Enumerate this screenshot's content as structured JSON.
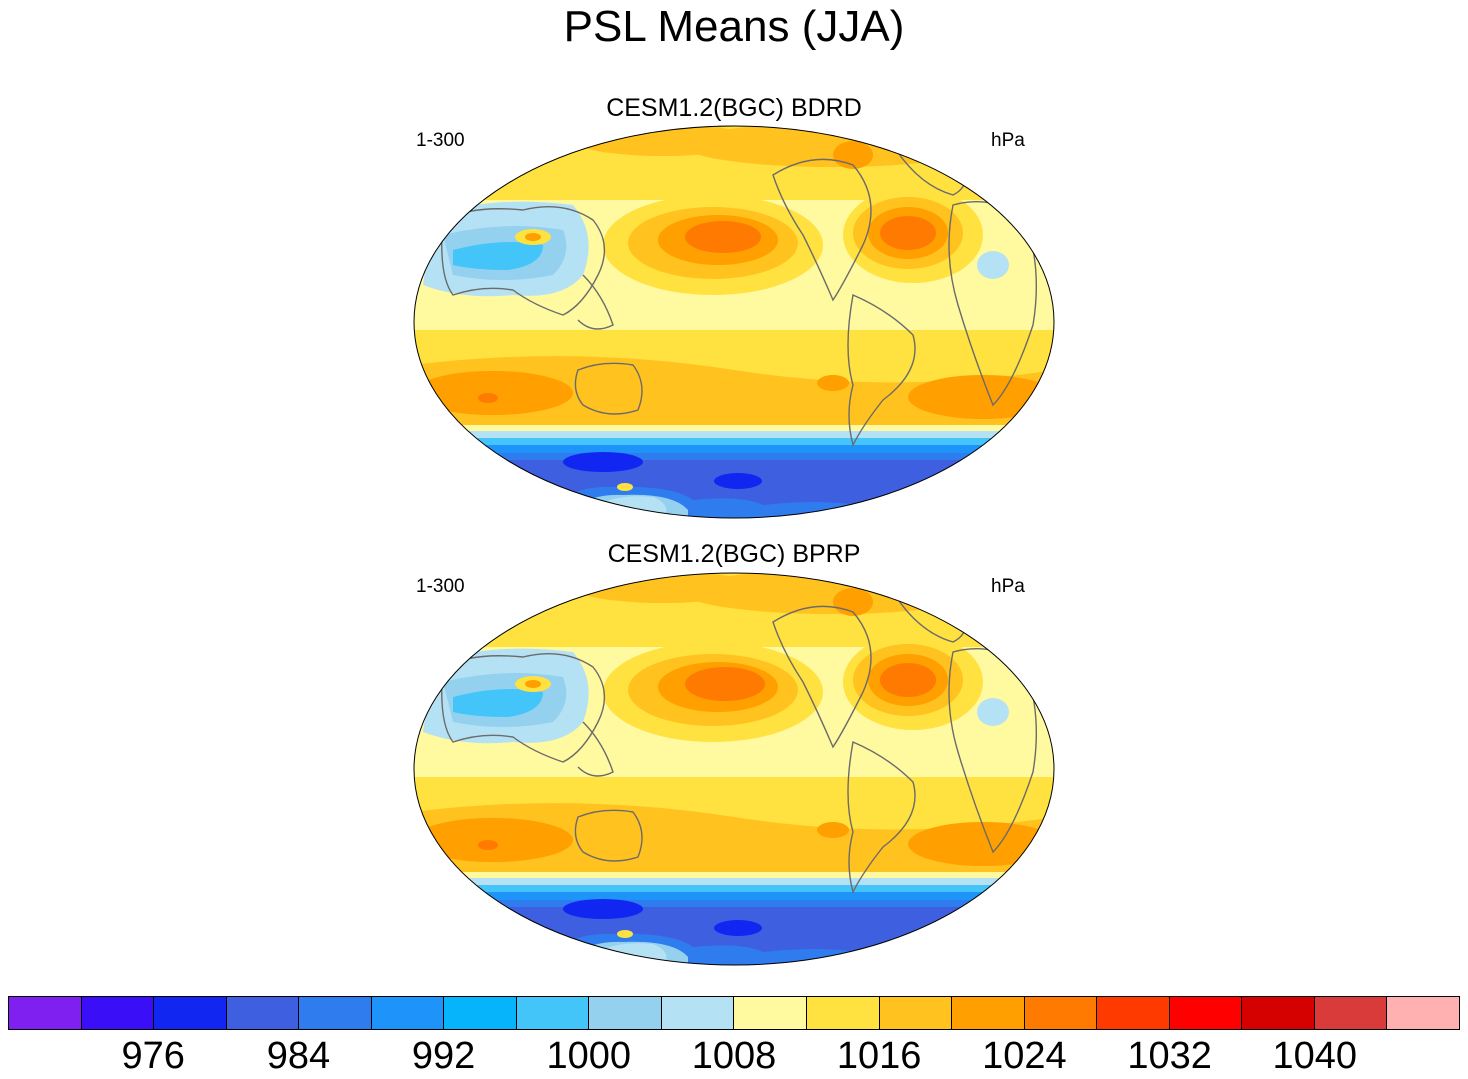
{
  "figure": {
    "title": "PSL Means (JJA)"
  },
  "panels": [
    {
      "title": "CESM1.2(BGC) BDRD",
      "left_label": "1-300",
      "right_label": "hPa"
    },
    {
      "title": "CESM1.2(BGC) BPRP",
      "left_label": "1-300",
      "right_label": "hPa"
    }
  ],
  "colorbar": {
    "units": "hPa",
    "colors": [
      "#7f1ff0",
      "#3a0ff7",
      "#1226f2",
      "#3e5fe0",
      "#2f7cee",
      "#1e94fb",
      "#05b4fb",
      "#43c5f9",
      "#93d1ef",
      "#b5e1f4",
      "#fff9a0",
      "#ffe140",
      "#ffc21e",
      "#ff9f00",
      "#ff7a00",
      "#ff3a00",
      "#ff0000",
      "#d50000",
      "#d93b3b",
      "#ffb0b0"
    ],
    "tick_labels": [
      "976",
      "984",
      "992",
      "1000",
      "1008",
      "1016",
      "1024",
      "1032",
      "1040"
    ],
    "tick_values": [
      976,
      984,
      992,
      1000,
      1008,
      1016,
      1024,
      1032,
      1040
    ]
  }
}
